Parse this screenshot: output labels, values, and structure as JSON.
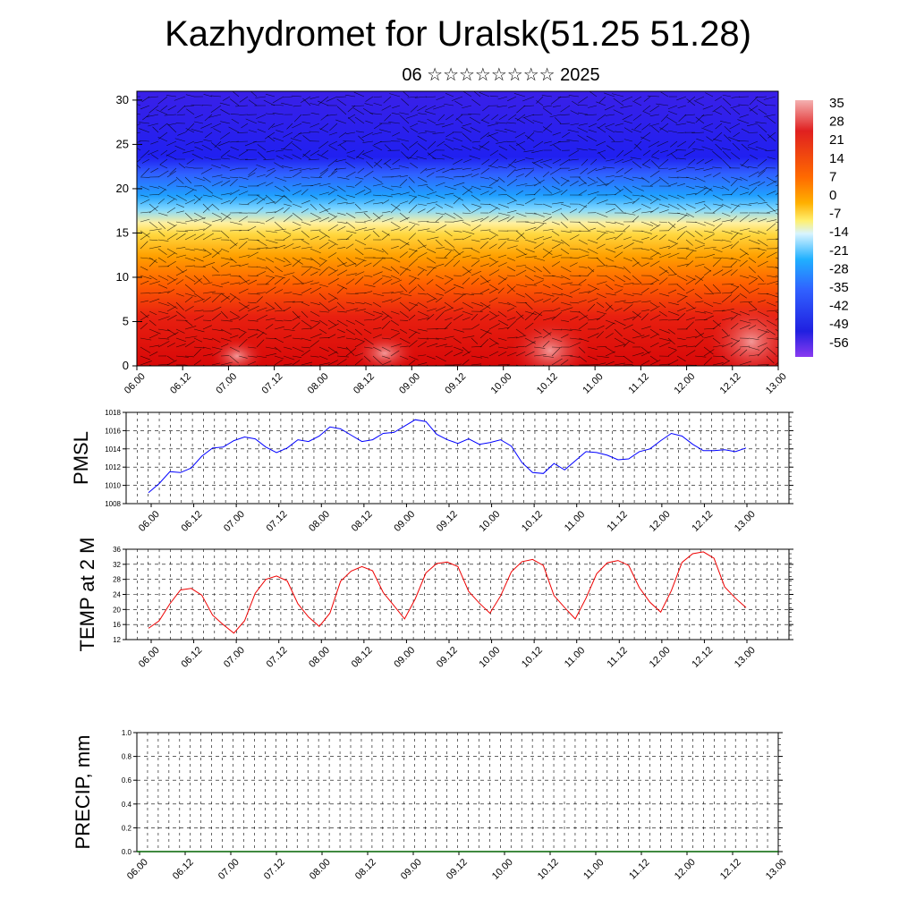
{
  "title": "Kazhydromet for Uralsk(51.25 51.28)",
  "subtitle": "06 ☆☆☆☆☆☆☆☆ 2025",
  "colors": {
    "pmsl_line": "#0000ff",
    "temp_line": "#ee0000",
    "precip_line": "#006400",
    "vectors": "#000000",
    "grid": "#000000"
  },
  "time_labels": [
    "06.00",
    "06.12",
    "07.00",
    "07.12",
    "08.00",
    "08.12",
    "09.00",
    "09.12",
    "10.00",
    "10.12",
    "11.00",
    "11.12",
    "12.00",
    "12.12",
    "13.00"
  ],
  "chart_data": [
    {
      "type": "heatmap",
      "description_of_fields": "upper panel: temperature shading with wind vectors",
      "ylim": [
        0,
        31
      ],
      "y_ticks": [
        "0",
        "5",
        "10",
        "15",
        "20",
        "25",
        "30"
      ],
      "colorbar_labels": [
        "35",
        "28",
        "21",
        "14",
        "7",
        "0",
        "-7",
        "-14",
        "-21",
        "-28",
        "-35",
        "-42",
        "-49",
        "-56"
      ],
      "colorbar_colors": [
        "#f2a0a0",
        "#e02020",
        "#d41010",
        "#f04010",
        "#ff8000",
        "#ffc000",
        "#fff060",
        "#d0f0ff",
        "#20b0ff",
        "#2080ff",
        "#4060ff",
        "#3030ff",
        "#2020e0",
        "#8030f0"
      ]
    },
    {
      "type": "line",
      "ylabel": "PMSL",
      "ylim": [
        1008,
        1018
      ],
      "y_ticks": [
        "1008",
        "1010",
        "1012",
        "1014",
        "1016",
        "1018"
      ],
      "x_step_hours": 3,
      "series": [
        {
          "values": [
            1009.2,
            1010.2,
            1011.5,
            1011.4,
            1011.9,
            1013.2,
            1014.1,
            1014.2,
            1014.9,
            1015.3,
            1015.1,
            1014.2,
            1013.6,
            1014.1,
            1015.0,
            1014.8,
            1015.4,
            1016.4,
            1016.2,
            1015.5,
            1014.8,
            1015.0,
            1015.7,
            1015.8,
            1016.5,
            1017.2,
            1017.0,
            1015.6,
            1015.0,
            1014.6,
            1015.1,
            1014.5,
            1014.7,
            1015.0,
            1014.3,
            1012.5,
            1011.4,
            1011.3,
            1012.4,
            1011.7,
            1012.7,
            1013.7,
            1013.6,
            1013.3,
            1012.8,
            1012.9,
            1013.7,
            1014.0,
            1014.9,
            1015.7,
            1015.4,
            1014.5,
            1013.8,
            1013.8,
            1013.9,
            1013.7,
            1014.1
          ]
        }
      ]
    },
    {
      "type": "line",
      "ylabel": "TEMP at 2 M",
      "ylim": [
        12,
        36
      ],
      "y_ticks": [
        "12",
        "16",
        "20",
        "24",
        "28",
        "32",
        "36"
      ],
      "x_step_hours": 3,
      "series": [
        {
          "values": [
            15.0,
            17.0,
            21.5,
            25.2,
            25.6,
            23.8,
            18.5,
            16.0,
            13.7,
            17.0,
            24.3,
            28.0,
            28.9,
            27.6,
            21.5,
            18.0,
            15.5,
            19.0,
            27.5,
            30.2,
            31.4,
            30.3,
            24.5,
            21.0,
            17.5,
            22.8,
            29.7,
            32.2,
            32.6,
            31.4,
            24.8,
            21.7,
            19.0,
            23.6,
            30.0,
            32.7,
            33.3,
            31.7,
            23.7,
            20.5,
            17.5,
            23.0,
            29.5,
            32.4,
            33.0,
            31.7,
            25.8,
            21.9,
            19.3,
            25.0,
            32.5,
            34.8,
            35.3,
            33.6,
            26.0,
            23.0,
            20.5
          ]
        }
      ]
    },
    {
      "type": "line",
      "ylabel": "PRECIP, mm",
      "ylim": [
        0.0,
        1.0
      ],
      "y_ticks": [
        "0.0",
        "0.2",
        "0.4",
        "0.6",
        "0.8",
        "1.0"
      ],
      "x_step_hours": 3,
      "series": [
        {
          "values": [
            0,
            0,
            0,
            0,
            0,
            0,
            0,
            0,
            0,
            0,
            0,
            0,
            0,
            0,
            0,
            0,
            0,
            0,
            0,
            0,
            0,
            0,
            0,
            0,
            0,
            0,
            0,
            0,
            0,
            0,
            0,
            0,
            0,
            0,
            0,
            0,
            0,
            0,
            0,
            0,
            0,
            0,
            0,
            0,
            0,
            0,
            0,
            0,
            0,
            0,
            0,
            0,
            0,
            0,
            0,
            0,
            0
          ]
        }
      ]
    }
  ]
}
